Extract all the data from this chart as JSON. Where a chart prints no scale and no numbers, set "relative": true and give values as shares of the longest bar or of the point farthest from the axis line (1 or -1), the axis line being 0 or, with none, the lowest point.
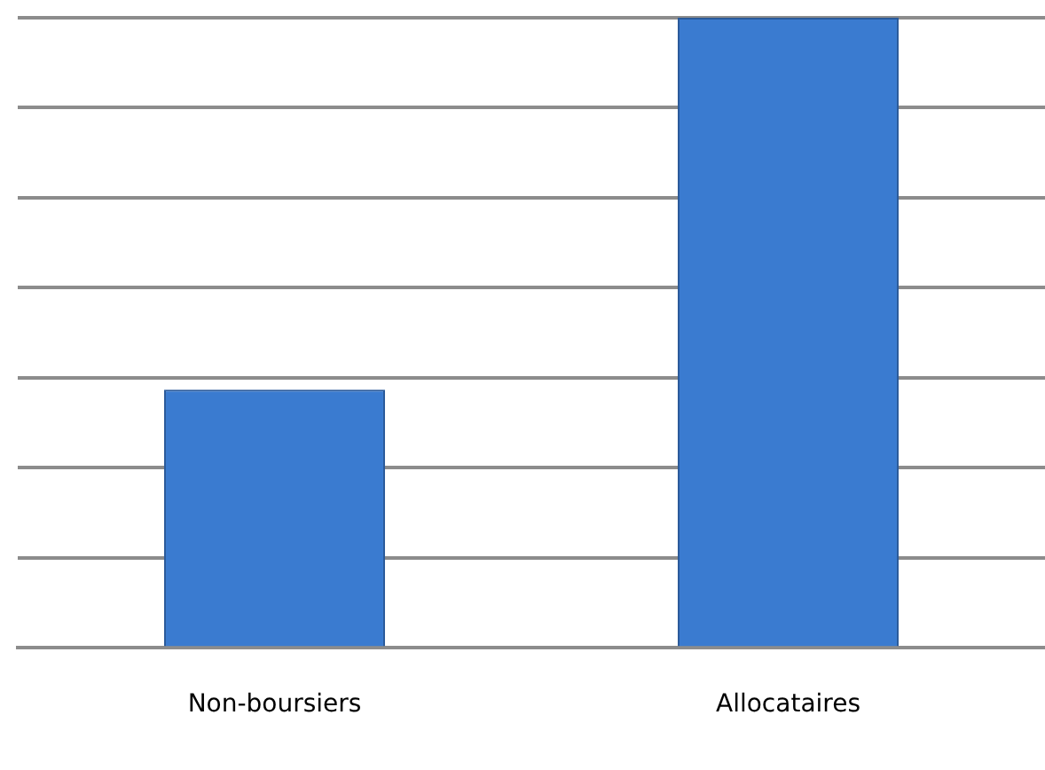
{
  "chart_data": {
    "type": "bar",
    "categories": [
      "Non-boursiers",
      "Allocataires"
    ],
    "values": [
      0.41,
      1
    ],
    "color": "#3a7bd0",
    "relative": true,
    "grid": "y",
    "legend": false
  }
}
